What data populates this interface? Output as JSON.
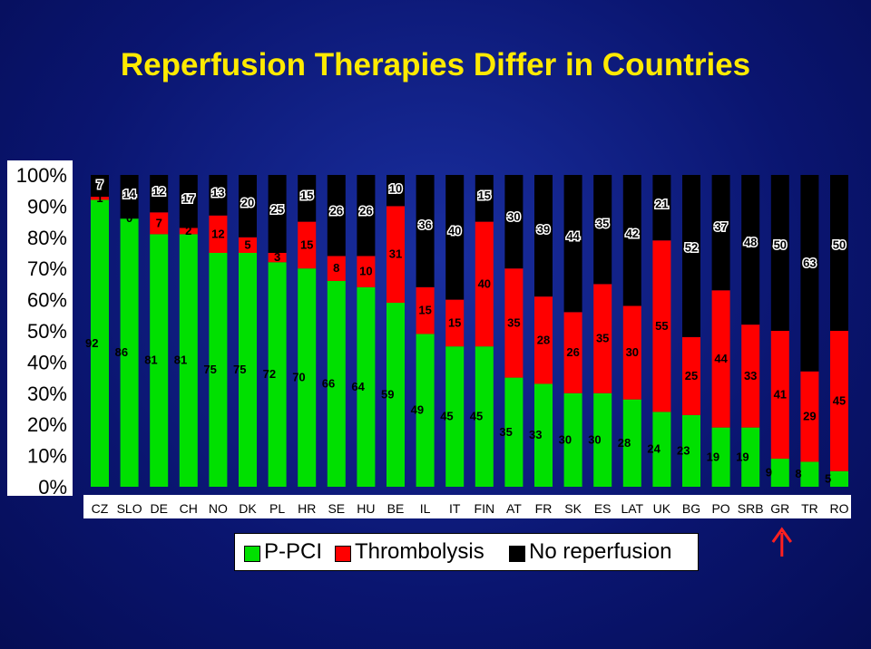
{
  "title": "Reperfusion Therapies Differ in Countries",
  "chart_data": {
    "type": "bar",
    "stacked": true,
    "categories": [
      "CZ",
      "SLO",
      "DE",
      "CH",
      "NO",
      "DK",
      "PL",
      "HR",
      "SE",
      "HU",
      "BE",
      "IL",
      "IT",
      "FIN",
      "AT",
      "FR",
      "SK",
      "ES",
      "LAT",
      "UK",
      "BG",
      "PO",
      "SRB",
      "GR",
      "TR",
      "RO"
    ],
    "series": [
      {
        "name": "P-PCI",
        "color": "#00e000",
        "values": [
          92,
          86,
          81,
          81,
          75,
          75,
          72,
          70,
          66,
          64,
          59,
          49,
          45,
          45,
          35,
          33,
          30,
          30,
          28,
          24,
          23,
          19,
          19,
          9,
          8,
          5
        ]
      },
      {
        "name": "Thrombolysis",
        "color": "#ff0000",
        "values": [
          1,
          0,
          7,
          2,
          12,
          5,
          3,
          15,
          8,
          10,
          31,
          15,
          15,
          40,
          35,
          28,
          26,
          35,
          30,
          55,
          25,
          44,
          33,
          41,
          29,
          45
        ]
      },
      {
        "name": "No reperfusion",
        "color": "#000000",
        "values": [
          7,
          14,
          12,
          17,
          13,
          20,
          25,
          15,
          26,
          26,
          10,
          36,
          40,
          15,
          30,
          39,
          44,
          35,
          42,
          21,
          52,
          37,
          48,
          50,
          63,
          50
        ]
      }
    ],
    "labels": {
      "P-PCI": [
        "92",
        "86",
        "81",
        "81",
        "75",
        "75",
        "72",
        "70",
        "66",
        "64",
        "59",
        "49",
        "45",
        "45",
        "35",
        "33",
        "30",
        "30",
        "28",
        "24",
        "23",
        "19",
        "19",
        "9",
        "8",
        "5"
      ],
      "Thrombolysis": [
        "1",
        "0",
        "7",
        "2",
        "12",
        "5",
        "3",
        "15",
        "8",
        "10",
        "31",
        "15",
        "15",
        "40",
        "35",
        "28",
        "26",
        "35",
        "30",
        "55",
        "25",
        "44",
        "33",
        "41",
        "29",
        "45"
      ],
      "No reperfusion": [
        "7",
        "14",
        "12",
        "17",
        "13",
        "20",
        "25",
        "15",
        "26",
        "26",
        "10",
        "36",
        "40",
        "15",
        "30",
        "39",
        "44",
        "35",
        "42",
        "21",
        "52",
        "37",
        "48",
        "50",
        "63",
        "50"
      ]
    },
    "y_ticks": [
      "0%",
      "10%",
      "20%",
      "30%",
      "40%",
      "50%",
      "60%",
      "70%",
      "80%",
      "90%",
      "100%"
    ],
    "ylim": [
      0,
      100
    ],
    "highlighted_category": "GR",
    "legend_position": "bottom-center"
  },
  "legend": {
    "items": [
      {
        "label": "P-PCI",
        "color": "#00e000"
      },
      {
        "label": "Thrombolysis",
        "color": "#ff0000"
      },
      {
        "label": "No reperfusion",
        "color": "#000000"
      }
    ]
  },
  "annotation": {
    "icon": "up-arrow-icon",
    "color": "#ff2020",
    "target": "GR"
  }
}
